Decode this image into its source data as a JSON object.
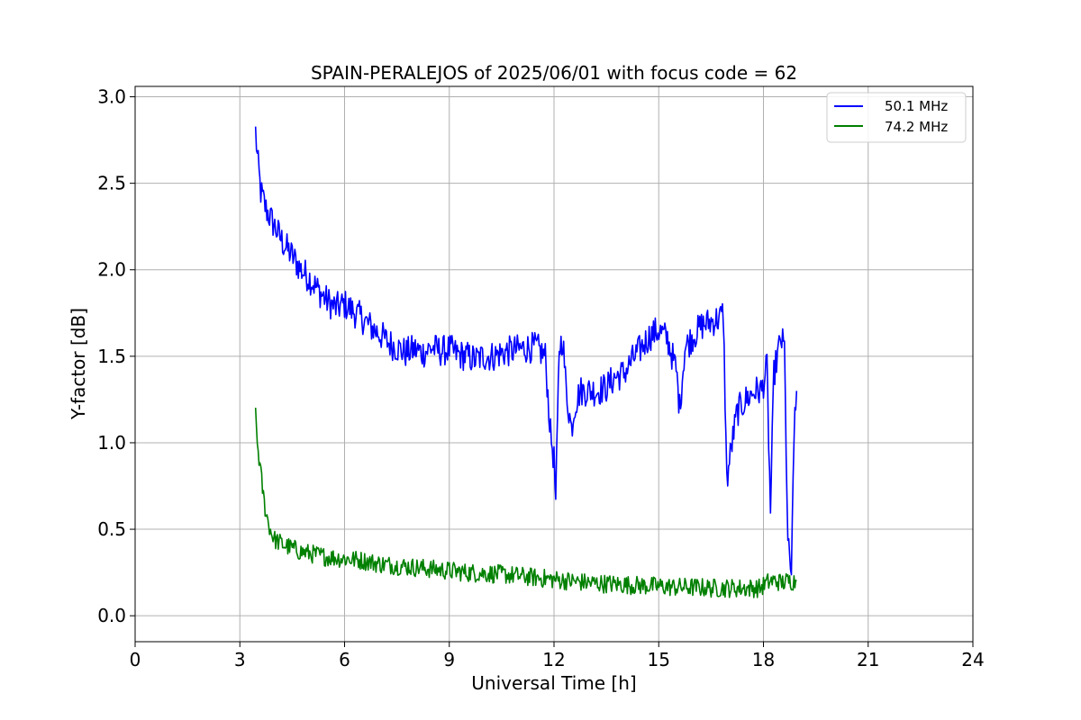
{
  "chart_data": {
    "type": "line",
    "title": "SPAIN-PERALEJOS of 2025/06/01 with focus code = 62",
    "xlabel": "Universal Time [h]",
    "ylabel": "Y-factor [dB]",
    "xlim": [
      0,
      24
    ],
    "ylim": [
      -0.15,
      3.06
    ],
    "xticks": [
      0,
      3,
      6,
      9,
      12,
      15,
      18,
      21,
      24
    ],
    "xtick_labels": [
      "0",
      "3",
      "6",
      "9",
      "12",
      "15",
      "18",
      "21",
      "24"
    ],
    "yticks": [
      0.0,
      0.5,
      1.0,
      1.5,
      2.0,
      2.5,
      3.0
    ],
    "ytick_labels": [
      "0.0",
      "0.5",
      "1.0",
      "1.5",
      "2.0",
      "2.5",
      "3.0"
    ],
    "grid": true,
    "legend_position": "top-right",
    "series": [
      {
        "name": "50.1 MHz",
        "color": "#0000ff",
        "x": [
          3.45,
          3.5,
          3.6,
          3.75,
          4.0,
          4.25,
          4.5,
          4.75,
          5.0,
          5.25,
          5.5,
          5.75,
          6.0,
          6.25,
          6.5,
          6.75,
          7.0,
          7.25,
          7.5,
          7.75,
          8.0,
          8.25,
          8.5,
          8.75,
          9.0,
          9.25,
          9.5,
          9.75,
          10.0,
          10.25,
          10.5,
          10.75,
          11.0,
          11.25,
          11.5,
          11.75,
          11.9,
          12.0,
          12.05,
          12.15,
          12.25,
          12.35,
          12.5,
          12.6,
          12.75,
          13.0,
          13.25,
          13.5,
          13.75,
          14.0,
          14.25,
          14.5,
          14.75,
          15.0,
          15.25,
          15.5,
          15.6,
          15.75,
          16.0,
          16.25,
          16.5,
          16.75,
          16.85,
          16.95,
          17.1,
          17.25,
          17.5,
          17.75,
          17.95,
          18.1,
          18.2,
          18.3,
          18.5,
          18.6,
          18.7,
          18.8,
          18.9,
          18.95
        ],
        "values": [
          2.8,
          2.65,
          2.45,
          2.35,
          2.25,
          2.15,
          2.08,
          2.0,
          1.95,
          1.88,
          1.82,
          1.78,
          1.8,
          1.76,
          1.72,
          1.67,
          1.63,
          1.58,
          1.55,
          1.52,
          1.54,
          1.52,
          1.55,
          1.53,
          1.54,
          1.51,
          1.5,
          1.48,
          1.5,
          1.5,
          1.52,
          1.53,
          1.54,
          1.55,
          1.55,
          1.5,
          1.05,
          0.9,
          0.65,
          1.55,
          1.6,
          1.3,
          1.08,
          1.22,
          1.3,
          1.3,
          1.3,
          1.32,
          1.38,
          1.4,
          1.48,
          1.55,
          1.62,
          1.65,
          1.6,
          1.42,
          1.2,
          1.55,
          1.62,
          1.68,
          1.7,
          1.72,
          1.75,
          0.78,
          1.0,
          1.18,
          1.25,
          1.3,
          1.3,
          1.44,
          0.6,
          1.4,
          1.6,
          1.55,
          0.4,
          0.25,
          1.2,
          1.3
        ]
      },
      {
        "name": "74.2 MHz",
        "color": "#008000",
        "x": [
          3.45,
          3.5,
          3.6,
          3.7,
          3.8,
          3.9,
          4.0,
          4.25,
          4.5,
          4.75,
          5.0,
          5.5,
          6.0,
          6.5,
          7.0,
          7.5,
          8.0,
          8.5,
          9.0,
          9.5,
          10.0,
          10.5,
          11.0,
          11.5,
          12.0,
          12.5,
          13.0,
          13.5,
          14.0,
          14.5,
          15.0,
          15.5,
          16.0,
          16.5,
          17.0,
          17.5,
          17.9,
          18.1,
          18.2,
          18.4,
          18.5,
          18.7,
          18.9,
          18.95
        ],
        "values": [
          1.15,
          1.0,
          0.82,
          0.65,
          0.55,
          0.48,
          0.44,
          0.41,
          0.39,
          0.37,
          0.36,
          0.34,
          0.33,
          0.32,
          0.3,
          0.29,
          0.28,
          0.27,
          0.26,
          0.25,
          0.245,
          0.24,
          0.23,
          0.22,
          0.21,
          0.2,
          0.19,
          0.185,
          0.18,
          0.175,
          0.17,
          0.165,
          0.165,
          0.16,
          0.16,
          0.16,
          0.16,
          0.19,
          0.2,
          0.2,
          0.19,
          0.2,
          0.2,
          0.2
        ]
      }
    ]
  }
}
